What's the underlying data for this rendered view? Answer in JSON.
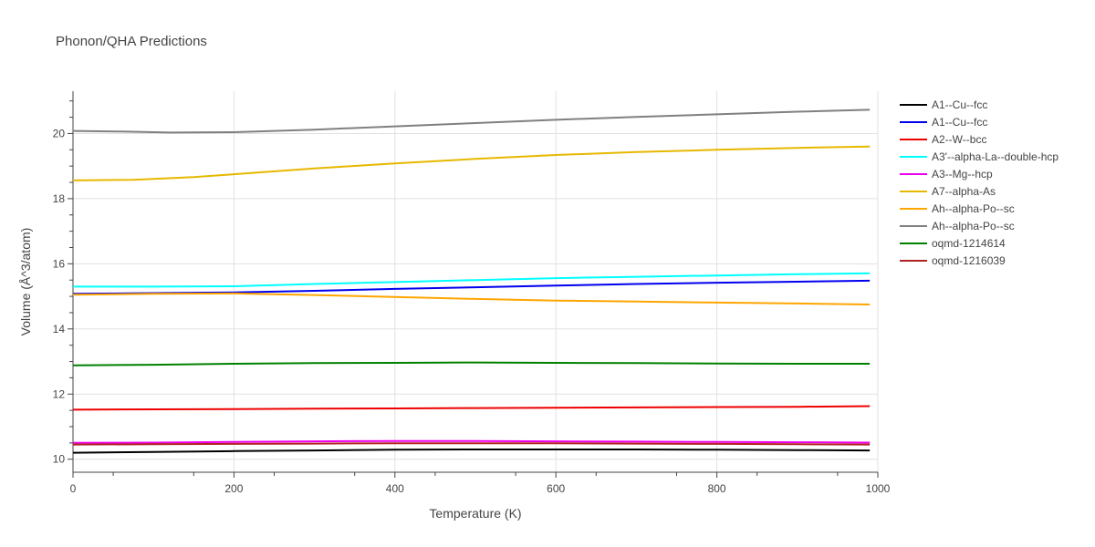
{
  "chart_data": {
    "type": "line",
    "title": "Phonon/QHA Predictions",
    "xlabel": "Temperature (K)",
    "ylabel": "Volume (Å^3/atom)",
    "xlim": [
      0,
      1000
    ],
    "ylim": [
      9.6,
      21.3
    ],
    "xticks": [
      0,
      200,
      400,
      600,
      800,
      1000
    ],
    "yticks": [
      10,
      12,
      14,
      16,
      18,
      20
    ],
    "grid": true,
    "legend": "right",
    "series": [
      {
        "name": "A1--Cu--fcc",
        "color": "#000000",
        "x": [
          0,
          100,
          200,
          300,
          400,
          500,
          600,
          700,
          800,
          900,
          990
        ],
        "y": [
          10.2,
          10.22,
          10.25,
          10.27,
          10.29,
          10.3,
          10.3,
          10.3,
          10.29,
          10.28,
          10.27
        ]
      },
      {
        "name": "A1--Cu--fcc",
        "color": "#0000ee",
        "x": [
          0,
          100,
          200,
          300,
          400,
          500,
          600,
          700,
          800,
          900,
          990
        ],
        "y": [
          15.08,
          15.1,
          15.12,
          15.17,
          15.23,
          15.28,
          15.33,
          15.38,
          15.42,
          15.45,
          15.48
        ]
      },
      {
        "name": "A2--W--bcc",
        "color": "#ee0000",
        "x": [
          0,
          100,
          200,
          300,
          400,
          500,
          600,
          700,
          800,
          900,
          990
        ],
        "y": [
          11.52,
          11.53,
          11.54,
          11.55,
          11.56,
          11.57,
          11.58,
          11.59,
          11.6,
          11.61,
          11.63
        ]
      },
      {
        "name": "A3'--alpha-La--double-hcp",
        "color": "#00ffff",
        "x": [
          0,
          100,
          200,
          300,
          400,
          500,
          600,
          700,
          800,
          900,
          990
        ],
        "y": [
          15.3,
          15.3,
          15.31,
          15.38,
          15.44,
          15.5,
          15.56,
          15.6,
          15.64,
          15.68,
          15.71
        ]
      },
      {
        "name": "A3--Mg--hcp",
        "color": "#ee00ee",
        "x": [
          0,
          100,
          200,
          300,
          400,
          500,
          600,
          700,
          800,
          900,
          990
        ],
        "y": [
          10.5,
          10.51,
          10.53,
          10.55,
          10.56,
          10.56,
          10.55,
          10.54,
          10.53,
          10.52,
          10.51
        ]
      },
      {
        "name": "A7--alpha-As",
        "color": "#e6b800",
        "x": [
          0,
          75,
          150,
          200,
          300,
          400,
          500,
          600,
          700,
          800,
          900,
          990
        ],
        "y": [
          18.56,
          18.58,
          18.66,
          18.75,
          18.93,
          19.08,
          19.22,
          19.34,
          19.43,
          19.5,
          19.56,
          19.6
        ]
      },
      {
        "name": "Ah--alpha-Po--sc",
        "color": "#ffa500",
        "x": [
          0,
          100,
          200,
          300,
          400,
          500,
          600,
          700,
          800,
          900,
          990
        ],
        "y": [
          15.05,
          15.08,
          15.09,
          15.04,
          14.98,
          14.92,
          14.87,
          14.84,
          14.81,
          14.78,
          14.75
        ]
      },
      {
        "name": "Ah--alpha-Po--sc",
        "color": "#808080",
        "x": [
          0,
          60,
          120,
          200,
          300,
          400,
          500,
          600,
          700,
          800,
          900,
          990
        ],
        "y": [
          20.08,
          20.06,
          20.03,
          20.04,
          20.12,
          20.22,
          20.32,
          20.42,
          20.51,
          20.59,
          20.67,
          20.73
        ]
      },
      {
        "name": "oqmd-1214614",
        "color": "#008000",
        "x": [
          0,
          100,
          200,
          300,
          400,
          500,
          600,
          700,
          800,
          900,
          990
        ],
        "y": [
          12.88,
          12.9,
          12.93,
          12.95,
          12.96,
          12.97,
          12.96,
          12.95,
          12.94,
          12.93,
          12.93
        ]
      },
      {
        "name": "oqmd-1216039",
        "color": "#b22222",
        "x": [
          0,
          100,
          200,
          300,
          400,
          500,
          600,
          700,
          800,
          900,
          990
        ],
        "y": [
          10.45,
          10.46,
          10.47,
          10.48,
          10.49,
          10.49,
          10.49,
          10.48,
          10.47,
          10.46,
          10.45
        ]
      }
    ]
  }
}
